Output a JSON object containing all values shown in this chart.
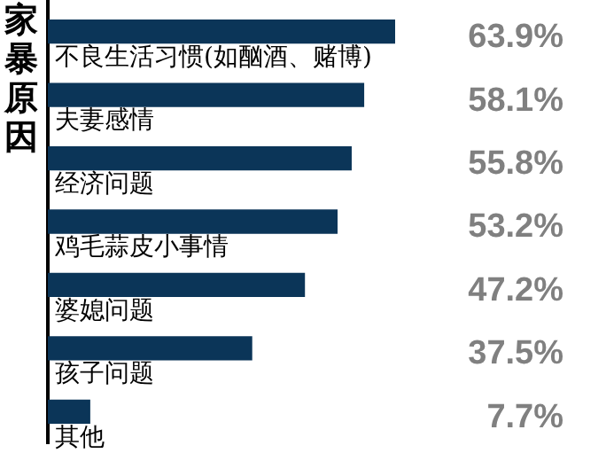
{
  "chart_data": {
    "type": "bar",
    "orientation": "horizontal",
    "ylabel": "家暴原因",
    "categories": [
      "不良生活习惯(如酗酒、赌博)",
      "夫妻感情",
      "经济问题",
      "鸡毛蒜皮小事情",
      "婆媳问题",
      "孩子问题",
      "其他"
    ],
    "values": [
      63.9,
      58.1,
      55.8,
      53.2,
      47.2,
      37.5,
      7.7
    ],
    "value_labels": [
      "63.9%",
      "58.1%",
      "55.8%",
      "53.2%",
      "47.2%",
      "37.5%",
      "7.7%"
    ],
    "color": "#0b3558",
    "grid": false,
    "legend": false
  }
}
